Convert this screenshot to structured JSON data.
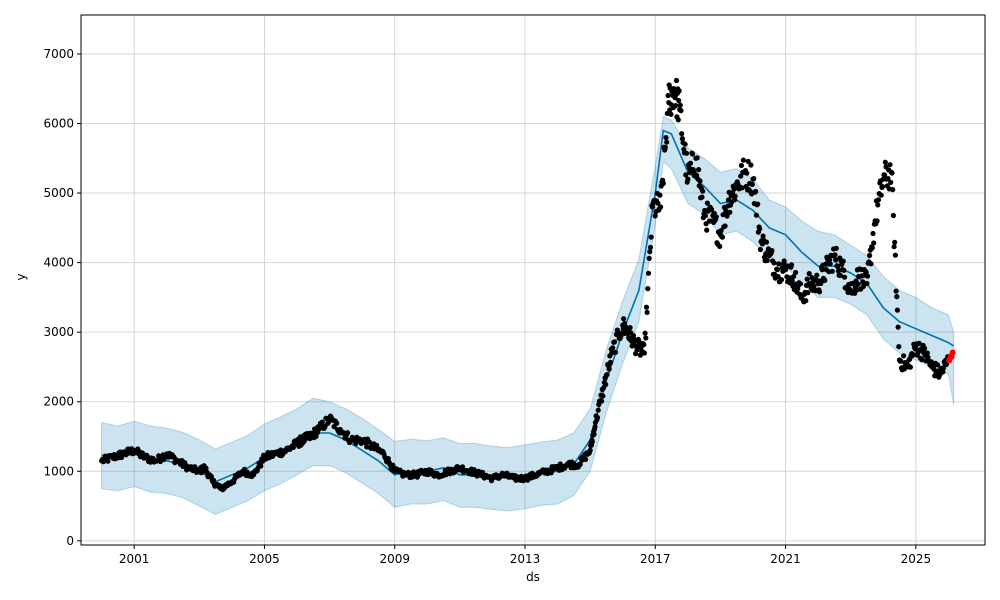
{
  "chart_data": {
    "type": "line",
    "xlabel": "ds",
    "ylabel": "y",
    "x_ticks": [
      "2001",
      "2005",
      "2009",
      "2013",
      "2017",
      "2021",
      "2025"
    ],
    "y_ticks": [
      0,
      1000,
      2000,
      3000,
      4000,
      5000,
      6000,
      7000
    ],
    "xlim": [
      "1999-05-15",
      "2027-02-15"
    ],
    "ylim": [
      -60,
      7560
    ],
    "grid": true,
    "colors": {
      "observed": "#000000",
      "forecast": "#0072B2",
      "interval": "#0072B2",
      "highlight": "#ff0000"
    },
    "series": [
      {
        "role": "forecast",
        "x": [
          "2000-01-01",
          "2000-07-01",
          "2001-01-01",
          "2001-07-01",
          "2002-01-01",
          "2002-07-01",
          "2003-01-01",
          "2003-07-01",
          "2004-01-01",
          "2004-07-01",
          "2005-01-01",
          "2005-07-01",
          "2006-01-01",
          "2006-07-01",
          "2007-01-01",
          "2007-07-01",
          "2008-01-01",
          "2008-07-01",
          "2009-01-01",
          "2009-07-01",
          "2010-01-01",
          "2010-07-01",
          "2011-01-01",
          "2011-07-01",
          "2012-01-01",
          "2012-07-01",
          "2013-01-01",
          "2013-07-01",
          "2014-01-01",
          "2014-07-01",
          "2015-01-01",
          "2015-07-01",
          "2016-01-01",
          "2016-07-01",
          "2017-01-01",
          "2017-04-01",
          "2017-07-01",
          "2018-01-01",
          "2018-07-01",
          "2019-01-01",
          "2019-07-01",
          "2020-01-01",
          "2020-07-01",
          "2021-01-01",
          "2021-07-01",
          "2022-01-01",
          "2022-07-01",
          "2023-01-01",
          "2023-07-01",
          "2024-01-01",
          "2024-07-01",
          "2025-01-01",
          "2025-07-01",
          "2026-01-01",
          "2026-03-01"
        ],
        "y": [
          1230,
          1200,
          1250,
          1180,
          1150,
          1100,
          1000,
          850,
          950,
          1050,
          1200,
          1300,
          1420,
          1550,
          1550,
          1450,
          1300,
          1150,
          950,
          1000,
          1000,
          1050,
          950,
          950,
          920,
          900,
          930,
          980,
          1000,
          1100,
          1450,
          2300,
          3000,
          3600,
          5000,
          5900,
          5850,
          5300,
          5100,
          4850,
          4900,
          4750,
          4500,
          4400,
          4150,
          3950,
          3950,
          3850,
          3700,
          3350,
          3150,
          3050,
          2950,
          2850,
          2800
        ]
      },
      {
        "role": "interval",
        "x": [
          "2000-01-01",
          "2000-07-01",
          "2001-01-01",
          "2001-07-01",
          "2002-01-01",
          "2002-07-01",
          "2003-01-01",
          "2003-07-01",
          "2004-01-01",
          "2004-07-01",
          "2005-01-01",
          "2005-07-01",
          "2006-01-01",
          "2006-07-01",
          "2007-01-01",
          "2007-07-01",
          "2008-01-01",
          "2008-07-01",
          "2009-01-01",
          "2009-07-01",
          "2010-01-01",
          "2010-07-01",
          "2011-01-01",
          "2011-07-01",
          "2012-01-01",
          "2012-07-01",
          "2013-01-01",
          "2013-07-01",
          "2014-01-01",
          "2014-07-01",
          "2015-01-01",
          "2015-07-01",
          "2016-01-01",
          "2016-07-01",
          "2017-01-01",
          "2017-04-01",
          "2017-07-01",
          "2018-01-01",
          "2018-07-01",
          "2019-01-01",
          "2019-07-01",
          "2020-01-01",
          "2020-07-01",
          "2021-01-01",
          "2021-07-01",
          "2022-01-01",
          "2022-07-01",
          "2023-01-01",
          "2023-07-01",
          "2024-01-01",
          "2024-07-01",
          "2025-01-01",
          "2025-07-01",
          "2026-01-01",
          "2026-03-01"
        ],
        "upper": [
          1700,
          1650,
          1720,
          1650,
          1620,
          1560,
          1450,
          1320,
          1420,
          1520,
          1680,
          1780,
          1900,
          2050,
          2000,
          1900,
          1760,
          1600,
          1430,
          1460,
          1440,
          1480,
          1400,
          1400,
          1360,
          1340,
          1380,
          1420,
          1450,
          1550,
          1900,
          2750,
          3450,
          4050,
          5400,
          6100,
          6050,
          5650,
          5500,
          5300,
          5350,
          5200,
          4900,
          4800,
          4600,
          4450,
          4400,
          4250,
          4100,
          3800,
          3600,
          3500,
          3350,
          3250,
          3000
        ]
      },
      {
        "role": "interval_lower",
        "x": [
          "2000-01-01",
          "2000-07-01",
          "2001-01-01",
          "2001-07-01",
          "2002-01-01",
          "2002-07-01",
          "2003-01-01",
          "2003-07-01",
          "2004-01-01",
          "2004-07-01",
          "2005-01-01",
          "2005-07-01",
          "2006-01-01",
          "2006-07-01",
          "2007-01-01",
          "2007-07-01",
          "2008-01-01",
          "2008-07-01",
          "2009-01-01",
          "2009-07-01",
          "2010-01-01",
          "2010-07-01",
          "2011-01-01",
          "2011-07-01",
          "2012-01-01",
          "2012-07-01",
          "2013-01-01",
          "2013-07-01",
          "2014-01-01",
          "2014-07-01",
          "2015-01-01",
          "2015-07-01",
          "2016-01-01",
          "2016-07-01",
          "2017-01-01",
          "2017-04-01",
          "2017-07-01",
          "2018-01-01",
          "2018-07-01",
          "2019-01-01",
          "2019-07-01",
          "2020-01-01",
          "2020-07-01",
          "2021-01-01",
          "2021-07-01",
          "2022-01-01",
          "2022-07-01",
          "2023-01-01",
          "2023-07-01",
          "2024-01-01",
          "2024-07-01",
          "2025-01-01",
          "2025-07-01",
          "2026-01-01",
          "2026-03-01"
        ],
        "lower": [
          750,
          720,
          780,
          700,
          680,
          620,
          500,
          380,
          480,
          580,
          720,
          820,
          950,
          1080,
          1080,
          980,
          830,
          680,
          480,
          530,
          530,
          580,
          480,
          480,
          450,
          430,
          460,
          510,
          530,
          650,
          1000,
          1850,
          2550,
          3150,
          4550,
          5450,
          5350,
          4850,
          4700,
          4400,
          4450,
          4300,
          4050,
          3950,
          3700,
          3500,
          3500,
          3400,
          3250,
          2900,
          2700,
          2600,
          2500,
          2400,
          1950
        ]
      },
      {
        "role": "observed",
        "x": [
          "2000-01-01",
          "2000-05-01",
          "2000-09-01",
          "2001-01-01",
          "2001-05-01",
          "2001-09-01",
          "2002-01-01",
          "2002-05-01",
          "2002-09-01",
          "2003-01-01",
          "2003-03-01",
          "2003-06-01",
          "2003-09-01",
          "2004-01-01",
          "2004-05-01",
          "2004-09-01",
          "2005-01-01",
          "2005-05-01",
          "2005-09-01",
          "2006-01-01",
          "2006-03-01",
          "2006-06-01",
          "2006-09-01",
          "2007-01-01",
          "2007-05-01",
          "2007-09-01",
          "2008-01-01",
          "2008-05-01",
          "2008-09-01",
          "2009-01-01",
          "2009-05-01",
          "2009-09-01",
          "2010-01-01",
          "2010-05-01",
          "2010-09-01",
          "2011-01-01",
          "2011-05-01",
          "2011-09-01",
          "2012-01-01",
          "2012-05-01",
          "2012-09-01",
          "2013-01-01",
          "2013-05-01",
          "2013-09-01",
          "2014-01-01",
          "2014-05-01",
          "2014-09-01",
          "2015-01-01",
          "2015-03-01",
          "2015-06-01",
          "2015-09-01",
          "2016-01-01",
          "2016-03-01",
          "2016-06-01",
          "2016-09-01",
          "2016-12-01",
          "2017-03-01",
          "2017-06-01",
          "2017-08-01",
          "2017-10-01",
          "2018-01-01",
          "2018-04-01",
          "2018-07-01",
          "2018-10-01",
          "2019-01-01",
          "2019-04-01",
          "2019-07-01",
          "2019-10-01",
          "2020-01-01",
          "2020-04-01",
          "2020-07-01",
          "2020-10-01",
          "2021-01-01",
          "2021-04-01",
          "2021-07-01",
          "2021-10-01",
          "2022-01-01",
          "2022-04-01",
          "2022-07-01",
          "2022-10-01",
          "2023-01-01",
          "2023-04-01",
          "2023-07-01",
          "2023-10-01",
          "2024-01-01",
          "2024-04-01",
          "2024-07-01",
          "2024-10-01",
          "2025-01-01",
          "2025-04-01",
          "2025-07-01",
          "2025-10-01",
          "2026-01-01"
        ],
        "y": [
          1150,
          1200,
          1250,
          1300,
          1200,
          1150,
          1250,
          1150,
          1050,
          1000,
          1050,
          850,
          750,
          850,
          1000,
          950,
          1200,
          1250,
          1300,
          1400,
          1450,
          1500,
          1600,
          1750,
          1600,
          1450,
          1450,
          1350,
          1250,
          1000,
          950,
          950,
          1000,
          950,
          1000,
          1050,
          1000,
          950,
          900,
          950,
          900,
          900,
          950,
          1000,
          1050,
          1100,
          1100,
          1300,
          1700,
          2200,
          2700,
          3100,
          3000,
          2800,
          2700,
          4800,
          4800,
          6300,
          6500,
          6200,
          5200,
          5500,
          4700,
          4600,
          4400,
          4900,
          5100,
          5300,
          5200,
          4300,
          4100,
          3900,
          3900,
          3800,
          3500,
          3700,
          3700,
          3900,
          4100,
          3900,
          3600,
          3800,
          3700,
          4600,
          5200,
          5300,
          2600,
          2500,
          2800,
          2700,
          2500,
          2400,
          2600
        ]
      },
      {
        "role": "highlight",
        "x": [
          "2026-02-01"
        ],
        "y": [
          2650
        ]
      }
    ]
  }
}
